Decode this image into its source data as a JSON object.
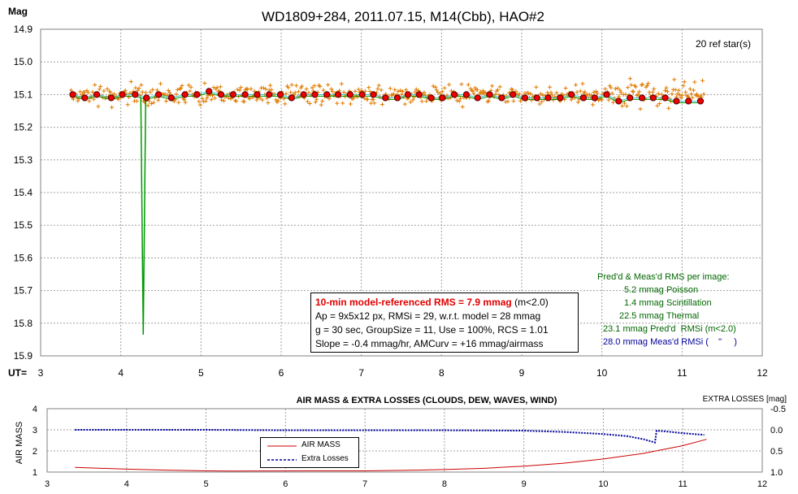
{
  "chart_data": [
    {
      "type": "scatter",
      "title": "WD1809+284, 2011.07.15, M14(Cbb), HAO#2",
      "ylabel": "Mag",
      "xlabel": "UT=",
      "xlim": [
        3,
        12
      ],
      "ylim": [
        15.9,
        14.9
      ],
      "y_inverted": true,
      "x_ticks": [
        "3",
        "4",
        "5",
        "6",
        "7",
        "8",
        "9",
        "10",
        "11",
        "12"
      ],
      "y_ticks": [
        "14.9",
        "15.0",
        "15.1",
        "15.2",
        "15.3",
        "15.4",
        "15.5",
        "15.6",
        "15.7",
        "15.8",
        "15.9"
      ],
      "grid": true,
      "annotation_refstars": "20 ref star(s)",
      "series": [
        {
          "kind": "individual_measurements",
          "color": "#e07b00",
          "x_range": [
            3.38,
            11.27
          ],
          "typical_y": 15.1,
          "scatter": 0.035
        },
        {
          "kind": "binned_averages",
          "color": "#dd0000",
          "points": [
            [
              3.4,
              15.1
            ],
            [
              3.55,
              15.11
            ],
            [
              3.7,
              15.1
            ],
            [
              3.88,
              15.11
            ],
            [
              4.02,
              15.1
            ],
            [
              4.18,
              15.1
            ],
            [
              4.32,
              15.11
            ],
            [
              4.47,
              15.1
            ],
            [
              4.63,
              15.11
            ],
            [
              4.8,
              15.1
            ],
            [
              4.95,
              15.1
            ],
            [
              5.1,
              15.09
            ],
            [
              5.25,
              15.1
            ],
            [
              5.4,
              15.1
            ],
            [
              5.55,
              15.1
            ],
            [
              5.7,
              15.1
            ],
            [
              5.85,
              15.1
            ],
            [
              5.99,
              15.1
            ],
            [
              6.13,
              15.11
            ],
            [
              6.28,
              15.1
            ],
            [
              6.42,
              15.1
            ],
            [
              6.57,
              15.1
            ],
            [
              6.71,
              15.1
            ],
            [
              6.86,
              15.1
            ],
            [
              7.01,
              15.1
            ],
            [
              7.15,
              15.1
            ],
            [
              7.3,
              15.11
            ],
            [
              7.45,
              15.11
            ],
            [
              7.58,
              15.1
            ],
            [
              7.72,
              15.1
            ],
            [
              7.87,
              15.11
            ],
            [
              8.01,
              15.11
            ],
            [
              8.16,
              15.1
            ],
            [
              8.31,
              15.1
            ],
            [
              8.45,
              15.11
            ],
            [
              8.6,
              15.1
            ],
            [
              8.75,
              15.11
            ],
            [
              8.89,
              15.1
            ],
            [
              9.04,
              15.11
            ],
            [
              9.19,
              15.11
            ],
            [
              9.33,
              15.11
            ],
            [
              9.48,
              15.11
            ],
            [
              9.62,
              15.1
            ],
            [
              9.77,
              15.11
            ],
            [
              9.91,
              15.11
            ],
            [
              10.06,
              15.1
            ],
            [
              10.21,
              15.12
            ],
            [
              10.35,
              15.11
            ],
            [
              10.5,
              15.11
            ],
            [
              10.64,
              15.11
            ],
            [
              10.79,
              15.11
            ],
            [
              10.93,
              15.12
            ],
            [
              11.08,
              15.12
            ],
            [
              11.23,
              15.12
            ]
          ]
        },
        {
          "kind": "model_line",
          "color": "#009900"
        },
        {
          "kind": "dip",
          "color": "#009900",
          "x": 4.28,
          "ymin": 15.835
        }
      ],
      "info_box": {
        "line1_red": "10-min model-referenced RMS = 7.9 mmag",
        "line1_tail": " (m<2.0)",
        "line2": "Ap = 9x5x12 px, RMSi = 29, w.r.t. model = 28 mmag",
        "line3": "g = 30 sec, GroupSize = 11, Use = 100%, RCS = 1.01",
        "line4": "Slope = -0.4 mmag/hr, AMCurv = +16 mmag/airmass"
      },
      "rms_block": {
        "header": "Pred'd & Meas'd RMS per image:",
        "poisson": "5.2 mmag Poisson",
        "scint": "1.4 mmag Scintillation",
        "thermal": "22.5 mmag Thermal",
        "predd": "23.1 mmag Pred'd  RMSi (m<2.0)",
        "measd": "28.0 mmag Meas'd RMSi (    \"     )",
        "color_green": "#006600",
        "color_blue": "#000099"
      }
    },
    {
      "type": "line",
      "title": "AIR MASS & EXTRA LOSSES (CLOUDS, DEW, WAVES, WIND)",
      "ylabel": "AIR MASS",
      "y2label": "EXTRA LOSSES [mag]",
      "xlim": [
        3,
        12
      ],
      "ylim": [
        1,
        4
      ],
      "y2lim": [
        1.0,
        -0.5
      ],
      "x_ticks": [
        "3",
        "4",
        "5",
        "6",
        "7",
        "8",
        "9",
        "10",
        "11",
        "12"
      ],
      "y_ticks": [
        "1",
        "2",
        "3",
        "4"
      ],
      "y2_ticks": [
        "-0.5",
        "0.0",
        "0.5",
        "1.0"
      ],
      "legend_placement": "lower-left",
      "series": [
        {
          "name": "AIR MASS",
          "color": "#cc0000",
          "points": [
            [
              3.35,
              1.22
            ],
            [
              4.0,
              1.14
            ],
            [
              4.5,
              1.09
            ],
            [
              5.0,
              1.06
            ],
            [
              5.3,
              1.05
            ],
            [
              7.0,
              1.06
            ],
            [
              7.5,
              1.08
            ],
            [
              8.0,
              1.12
            ],
            [
              8.5,
              1.18
            ],
            [
              9.0,
              1.28
            ],
            [
              9.5,
              1.42
            ],
            [
              10.0,
              1.62
            ],
            [
              10.5,
              1.88
            ],
            [
              11.0,
              2.25
            ],
            [
              11.3,
              2.55
            ]
          ]
        },
        {
          "name": "Extra Losses",
          "color": "#000099",
          "points": [
            [
              3.35,
              0.0
            ],
            [
              4.0,
              0.0
            ],
            [
              5.0,
              0.0
            ],
            [
              6.0,
              0.01
            ],
            [
              7.0,
              0.01
            ],
            [
              8.0,
              0.01
            ],
            [
              9.0,
              0.02
            ],
            [
              9.5,
              0.05
            ],
            [
              10.0,
              0.1
            ],
            [
              10.3,
              0.15
            ],
            [
              10.5,
              0.22
            ],
            [
              10.65,
              0.3
            ],
            [
              10.67,
              0.02
            ],
            [
              10.8,
              0.04
            ],
            [
              11.0,
              0.08
            ],
            [
              11.27,
              0.12
            ]
          ]
        }
      ]
    }
  ]
}
